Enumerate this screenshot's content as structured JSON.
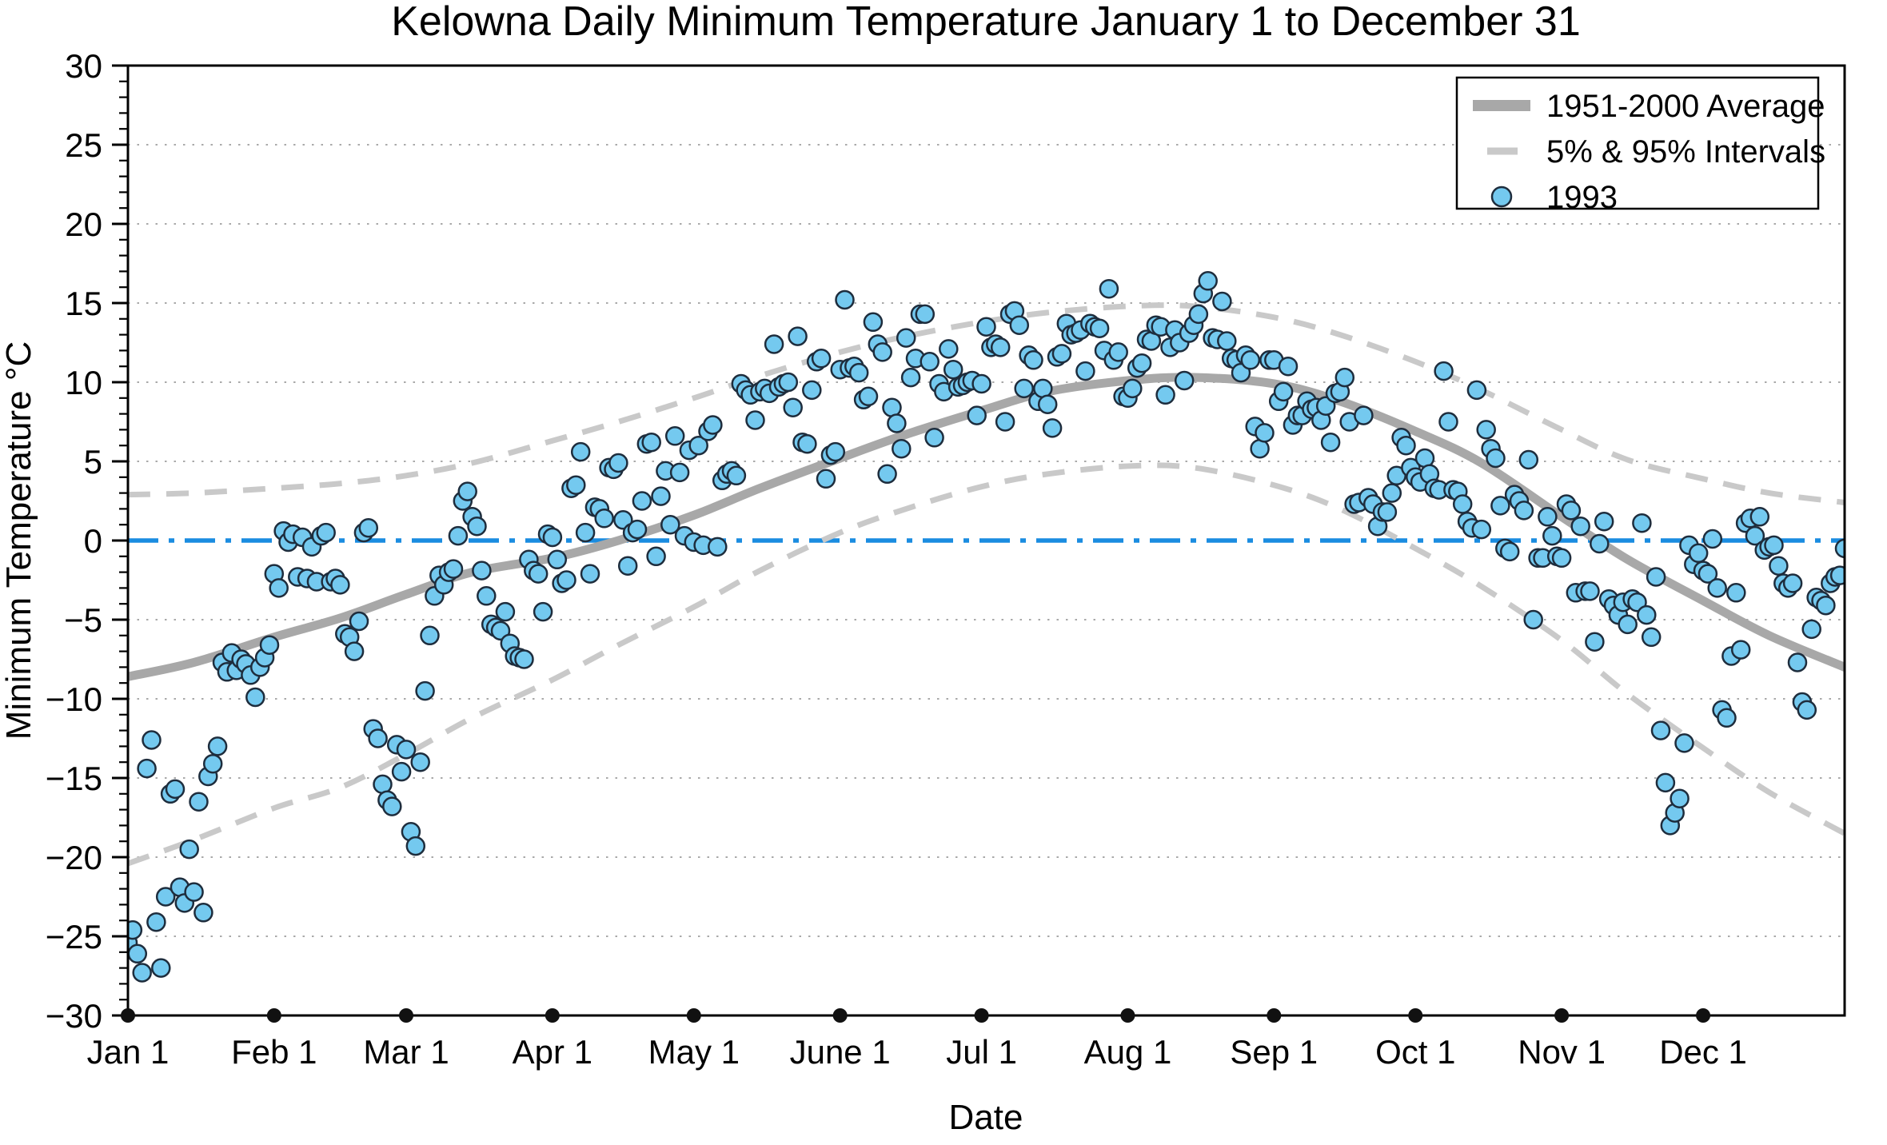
{
  "title": "Kelowna Daily Minimum Temperature January 1 to December 31",
  "axes": {
    "y_label": "Minimum Temperature °C",
    "x_label": "Date",
    "y_major_ticks": [
      30,
      25,
      20,
      15,
      10,
      5,
      0,
      -5,
      -10,
      -15,
      -20,
      -25,
      -30
    ],
    "y_minor_step": 1,
    "y_range": [
      -30,
      30
    ],
    "x_tick_labels": [
      "Jan 1",
      "Feb 1",
      "Mar 1",
      "Apr 1",
      "May 1",
      "June 1",
      "Jul 1",
      "Aug 1",
      "Sep 1",
      "Oct 1",
      "Nov 1",
      "Dec 1"
    ],
    "x_tick_days": [
      1,
      32,
      60,
      91,
      121,
      152,
      182,
      213,
      244,
      274,
      305,
      335
    ],
    "x_range_days": [
      1,
      365
    ]
  },
  "legend": {
    "items": [
      {
        "label": "1951-2000 Average",
        "swatch": "thick-gray-line"
      },
      {
        "label": "5% & 95% Intervals",
        "swatch": "gray-dash"
      },
      {
        "label": "1993",
        "swatch": "blue-circle"
      }
    ]
  },
  "colors": {
    "point_fill": "#74c9ef",
    "point_edge": "#1e2d3d",
    "average_line": "#a8a8a8",
    "interval_line": "#c9c9c9",
    "zero_line_blue": "#1a8ce0",
    "gridline": "#a9a9a9",
    "frame": "#000000",
    "month_dot": "#111111",
    "background": "#ffffff"
  },
  "chart_data": {
    "type": "scatter",
    "title": "Kelowna Daily Minimum Temperature January 1 to December 31",
    "xlabel": "Date",
    "ylabel": "Minimum Temperature °C",
    "ylim": [
      -30,
      30
    ],
    "x_unit": "day_of_year",
    "grid": "dotted horizontal every 5°C",
    "legend_position": "top-right",
    "zero_reference_line": {
      "y": 0,
      "style": "dash-dot",
      "color": "#1a8ce0"
    },
    "series": [
      {
        "name": "1993",
        "type": "scatter",
        "x_start_day": 1,
        "values": [
          -25.4,
          -24.6,
          -26.1,
          -27.3,
          -14.4,
          -12.6,
          -24.1,
          -27.0,
          -22.5,
          -16.0,
          -15.7,
          -21.9,
          -22.9,
          -19.5,
          -22.2,
          -16.5,
          -23.5,
          -14.9,
          -14.1,
          -13.0,
          -7.7,
          -8.3,
          -7.1,
          -8.2,
          -7.5,
          -7.8,
          -8.5,
          -9.9,
          -8.0,
          -7.4,
          -6.6,
          -2.1,
          -3.0,
          0.6,
          -0.1,
          0.4,
          -2.3,
          0.2,
          -2.4,
          -0.4,
          -2.6,
          0.3,
          0.5,
          -2.6,
          -2.4,
          -2.8,
          -5.9,
          -6.1,
          -7.0,
          -5.1,
          0.5,
          0.8,
          -11.9,
          -12.5,
          -15.4,
          -16.4,
          -16.8,
          -12.9,
          -14.6,
          -13.2,
          -18.4,
          -19.3,
          -14.0,
          -9.5,
          -6.0,
          -3.5,
          -2.2,
          -2.8,
          -2.0,
          -1.8,
          0.3,
          2.5,
          3.1,
          1.5,
          0.9,
          -1.9,
          -3.5,
          -5.3,
          -5.5,
          -5.7,
          -4.5,
          -6.5,
          -7.3,
          -7.4,
          -7.5,
          -1.2,
          -1.9,
          -2.1,
          -4.5,
          0.4,
          0.2,
          -1.2,
          -2.7,
          -2.5,
          3.3,
          3.5,
          5.6,
          0.5,
          -2.1,
          2.1,
          2.0,
          1.4,
          4.6,
          4.5,
          4.9,
          1.3,
          -1.6,
          0.5,
          0.7,
          2.5,
          6.1,
          6.2,
          -1.0,
          2.8,
          4.4,
          1.0,
          6.6,
          4.3,
          0.3,
          5.7,
          -0.1,
          6.0,
          -0.3,
          6.9,
          7.3,
          -0.4,
          3.8,
          4.2,
          4.4,
          4.1,
          9.9,
          9.5,
          9.2,
          7.6,
          9.4,
          9.6,
          9.3,
          12.4,
          9.7,
          9.9,
          10.0,
          8.4,
          12.9,
          6.2,
          6.1,
          9.5,
          11.3,
          11.5,
          3.9,
          5.4,
          5.6,
          10.8,
          15.2,
          10.9,
          11.0,
          10.6,
          8.9,
          9.1,
          13.8,
          12.4,
          11.9,
          4.2,
          8.4,
          7.4,
          5.8,
          12.8,
          10.3,
          11.5,
          14.3,
          14.3,
          11.3,
          6.5,
          9.9,
          9.4,
          12.1,
          10.8,
          9.7,
          9.8,
          10.0,
          10.1,
          7.9,
          9.9,
          13.5,
          12.2,
          12.4,
          12.2,
          7.5,
          14.3,
          14.5,
          13.6,
          9.6,
          11.7,
          11.4,
          8.8,
          9.6,
          8.6,
          7.1,
          11.6,
          11.8,
          13.7,
          13.0,
          13.1,
          13.3,
          10.7,
          13.7,
          13.5,
          13.4,
          12.0,
          15.9,
          11.4,
          11.9,
          9.1,
          9.0,
          9.6,
          10.9,
          11.2,
          12.7,
          12.6,
          13.6,
          13.5,
          9.2,
          12.2,
          13.3,
          12.5,
          10.1,
          13.1,
          13.6,
          14.3,
          15.6,
          16.4,
          12.8,
          12.7,
          15.1,
          12.6,
          11.5,
          11.4,
          10.6,
          11.7,
          11.4,
          7.2,
          5.8,
          6.8,
          11.4,
          11.4,
          8.8,
          9.4,
          11.0,
          7.3,
          7.9,
          7.9,
          8.8,
          8.3,
          8.4,
          7.6,
          8.5,
          6.2,
          9.3,
          9.4,
          10.3,
          7.5,
          2.3,
          2.4,
          7.9,
          2.7,
          2.3,
          0.9,
          1.8,
          1.8,
          3.0,
          4.1,
          6.5,
          6.0,
          4.6,
          4.0,
          3.7,
          5.2,
          4.2,
          3.3,
          3.2,
          10.7,
          7.5,
          3.2,
          3.1,
          2.3,
          1.2,
          0.8,
          9.5,
          0.7,
          7.0,
          5.8,
          5.2,
          2.2,
          -0.5,
          -0.7,
          2.9,
          2.5,
          1.9,
          5.1,
          -5.0,
          -1.1,
          -1.1,
          1.5,
          0.3,
          -1.0,
          -1.1,
          2.3,
          1.9,
          -3.3,
          0.9,
          -3.2,
          -3.2,
          -6.4,
          -0.2,
          1.2,
          -3.7,
          -4.1,
          -4.7,
          -3.9,
          -5.3,
          -3.7,
          -3.9,
          1.1,
          -4.7,
          -6.1,
          -2.3,
          -12.0,
          -15.3,
          -18.0,
          -17.2,
          -16.3,
          -12.8,
          -0.3,
          -1.5,
          -0.8,
          -1.9,
          -2.1,
          0.1,
          -3.0,
          -10.7,
          -11.2,
          -7.3,
          -3.3,
          -6.9,
          1.1,
          1.4,
          0.3,
          1.5,
          -0.6,
          -0.4,
          -0.3,
          -1.6,
          -2.7,
          -3.0,
          -2.7,
          -7.7,
          -10.2,
          -10.7,
          -5.6,
          -3.6,
          -3.8,
          -4.1,
          -2.7,
          -2.3,
          -2.2,
          -0.5
        ]
      },
      {
        "name": "1951-2000 Average",
        "type": "line",
        "x": [
          1,
          15,
          32,
          46,
          60,
          74,
          91,
          105,
          121,
          135,
          152,
          166,
          182,
          196,
          213,
          227,
          244,
          258,
          274,
          288,
          305,
          319,
          335,
          349,
          365
        ],
        "values": [
          -8.6,
          -7.7,
          -6.1,
          -4.9,
          -3.4,
          -2.0,
          -1.1,
          0.0,
          1.6,
          3.3,
          5.2,
          6.7,
          8.2,
          9.4,
          10.1,
          10.3,
          9.9,
          8.8,
          6.9,
          4.9,
          1.5,
          -1.2,
          -3.8,
          -6.0,
          -8.0
        ]
      },
      {
        "name": "95% Interval (upper)",
        "type": "dashed-line",
        "x": [
          1,
          15,
          32,
          46,
          60,
          74,
          91,
          105,
          121,
          135,
          152,
          166,
          182,
          196,
          213,
          227,
          244,
          258,
          274,
          288,
          305,
          319,
          335,
          349,
          365
        ],
        "values": [
          2.9,
          3.0,
          3.3,
          3.6,
          4.1,
          4.9,
          6.3,
          7.5,
          9.0,
          10.4,
          11.9,
          12.9,
          13.8,
          14.4,
          14.8,
          14.8,
          14.1,
          13.0,
          11.3,
          9.5,
          7.0,
          5.1,
          3.9,
          3.0,
          2.4
        ]
      },
      {
        "name": "5% Interval (lower)",
        "type": "dashed-line",
        "x": [
          1,
          15,
          32,
          46,
          60,
          74,
          91,
          105,
          121,
          135,
          152,
          166,
          182,
          196,
          213,
          227,
          244,
          258,
          274,
          288,
          305,
          319,
          335,
          349,
          365
        ],
        "values": [
          -20.4,
          -18.9,
          -16.9,
          -15.6,
          -13.5,
          -11.2,
          -8.8,
          -6.6,
          -4.2,
          -1.9,
          0.5,
          2.0,
          3.4,
          4.2,
          4.7,
          4.6,
          3.5,
          2.0,
          -0.5,
          -2.9,
          -6.3,
          -9.7,
          -13.1,
          -15.9,
          -18.5
        ]
      }
    ]
  }
}
